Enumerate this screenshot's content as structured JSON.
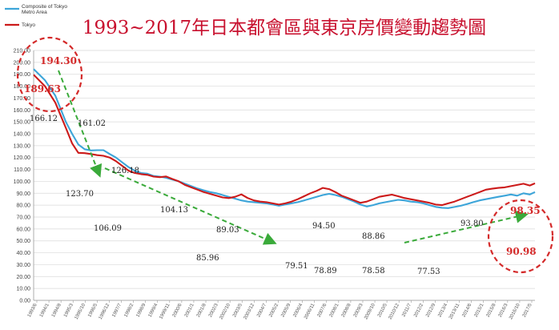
{
  "chart_data": {
    "type": "line",
    "title": "1993~2017年日本都會區與東京房價變動趨勢圖",
    "ylim": [
      0,
      210
    ],
    "y_ticks": [
      "0.00",
      "10.00",
      "20.00",
      "30.00",
      "40.00",
      "50.00",
      "60.00",
      "70.00",
      "80.00",
      "90.00",
      "100.00",
      "110.00",
      "120.00",
      "130.00",
      "140.00",
      "150.00",
      "160.00",
      "170.00",
      "180.00",
      "190.00",
      "200.00",
      "210.00"
    ],
    "x_ticks": [
      "1993/6",
      "1994/1",
      "1994/8",
      "1995/3",
      "1995/10",
      "1996/5",
      "1996/12",
      "1997/7",
      "1998/2",
      "1998/9",
      "1999/4",
      "1999/11",
      "2000/6",
      "2001/1",
      "2001/8",
      "2002/3",
      "2002/10",
      "2003/5",
      "2003/12",
      "2004/7",
      "2005/2",
      "2005/9",
      "2006/4",
      "2006/11",
      "2007/6",
      "2008/1",
      "2008/8",
      "2009/3",
      "2009/10",
      "2010/5",
      "2010/12",
      "2011/7",
      "2012/2",
      "2012/9",
      "2013/4",
      "2013/11",
      "2014/6",
      "2015/1",
      "2015/8",
      "2016/3",
      "2016/10",
      "2017/5"
    ],
    "grid": true,
    "legend_position": "top-left",
    "series": [
      {
        "name": "Composite of Tokyo Metro Area",
        "color": "#3da5d9",
        "x": [
          1993.46,
          1994.0,
          1994.5,
          1995.0,
          1995.3,
          1995.6,
          1995.9,
          1996.2,
          1996.5,
          1996.8,
          1997.1,
          1997.4,
          1997.7,
          1998.0,
          1998.3,
          1998.6,
          1998.9,
          1999.2,
          1999.5,
          1999.8,
          2000.1,
          2000.4,
          2000.7,
          2001.0,
          2001.3,
          2001.6,
          2001.9,
          2002.2,
          2002.5,
          2002.8,
          2003.1,
          2003.4,
          2003.7,
          2004.0,
          2004.3,
          2004.6,
          2004.9,
          2005.2,
          2005.5,
          2005.8,
          2006.1,
          2006.4,
          2006.7,
          2007.0,
          2007.3,
          2007.6,
          2007.9,
          2008.2,
          2008.5,
          2008.8,
          2009.1,
          2009.4,
          2009.7,
          2010.0,
          2010.3,
          2010.6,
          2010.9,
          2011.2,
          2011.5,
          2011.8,
          2012.1,
          2012.4,
          2012.7,
          2013.0,
          2013.3,
          2013.6,
          2013.9,
          2014.2,
          2014.5,
          2014.8,
          2015.1,
          2015.4,
          2015.7,
          2016.0,
          2016.3,
          2016.6,
          2016.9,
          2017.2,
          2017.45
        ],
        "values": [
          194.3,
          185,
          172,
          150,
          140,
          131,
          127,
          126,
          126.2,
          126.18,
          123,
          120,
          116,
          112,
          109,
          107,
          106.5,
          104.5,
          104,
          103,
          101.5,
          100,
          98,
          96,
          94,
          92.5,
          91,
          90,
          88.5,
          87,
          85.5,
          84,
          83,
          82.5,
          82,
          81.5,
          80.5,
          79.51,
          80.5,
          81.5,
          82.5,
          84,
          85.5,
          87,
          88.5,
          89.5,
          88.5,
          87,
          85,
          83,
          80.5,
          78.89,
          80,
          81.5,
          82.5,
          83.5,
          84.5,
          84,
          83,
          82.5,
          81.5,
          80,
          78.58,
          77.8,
          77.53,
          78.5,
          79.5,
          81,
          82.5,
          84,
          85,
          86,
          87,
          88,
          89,
          88,
          90,
          89,
          90.98
        ]
      },
      {
        "name": "Tokyo",
        "color": "#cc1a1a",
        "x": [
          1993.46,
          1994.0,
          1994.5,
          1995.0,
          1995.3,
          1995.6,
          1995.9,
          1996.2,
          1996.5,
          1996.8,
          1997.1,
          1997.4,
          1997.7,
          1998.0,
          1998.3,
          1998.6,
          1998.9,
          1999.2,
          1999.5,
          1999.8,
          2000.1,
          2000.4,
          2000.7,
          2001.0,
          2001.3,
          2001.6,
          2001.9,
          2002.2,
          2002.5,
          2002.8,
          2003.1,
          2003.4,
          2003.7,
          2004.0,
          2004.3,
          2004.6,
          2004.9,
          2005.2,
          2005.5,
          2005.8,
          2006.1,
          2006.4,
          2006.7,
          2007.0,
          2007.3,
          2007.6,
          2007.9,
          2008.2,
          2008.5,
          2008.8,
          2009.1,
          2009.4,
          2009.7,
          2010.0,
          2010.3,
          2010.6,
          2010.9,
          2011.2,
          2011.5,
          2011.8,
          2012.1,
          2012.4,
          2012.7,
          2013.0,
          2013.3,
          2013.6,
          2013.9,
          2014.2,
          2014.5,
          2014.8,
          2015.1,
          2015.4,
          2015.7,
          2016.0,
          2016.3,
          2016.6,
          2016.9,
          2017.2,
          2017.45
        ],
        "values": [
          189.63,
          180,
          166.12,
          145,
          132,
          124,
          123.7,
          123,
          122,
          121.5,
          120,
          117,
          113,
          109,
          107,
          106.09,
          105.5,
          104,
          103.5,
          104.13,
          102,
          100,
          97,
          95,
          93,
          91,
          89.5,
          88,
          86.5,
          85.96,
          87,
          89.03,
          86,
          84,
          83,
          82.5,
          81.5,
          80.5,
          81.5,
          83,
          85,
          87.5,
          90,
          92,
          94.5,
          93.5,
          91,
          88,
          86,
          84,
          82,
          83,
          85,
          87,
          88,
          88.86,
          87.5,
          86,
          85,
          84,
          83,
          82,
          80.5,
          80,
          81.5,
          83,
          85,
          87,
          89,
          91,
          93,
          93.8,
          94.5,
          95,
          96,
          97,
          98,
          96.5,
          98.35
        ]
      }
    ],
    "annotations": [
      {
        "text": "194.30",
        "style": "red"
      },
      {
        "text": "189.63",
        "style": "red"
      },
      {
        "text": "166.12",
        "style": "plain"
      },
      {
        "text": "161.02",
        "style": "plain"
      },
      {
        "text": "126.18",
        "style": "plain"
      },
      {
        "text": "123.70",
        "style": "plain"
      },
      {
        "text": "104.13",
        "style": "plain"
      },
      {
        "text": "106.09",
        "style": "plain"
      },
      {
        "text": "89.03",
        "style": "plain"
      },
      {
        "text": "85.96",
        "style": "plain"
      },
      {
        "text": "79.51",
        "style": "plain"
      },
      {
        "text": "94.50",
        "style": "plain"
      },
      {
        "text": "78.89",
        "style": "plain"
      },
      {
        "text": "88.86",
        "style": "plain"
      },
      {
        "text": "78.58",
        "style": "plain"
      },
      {
        "text": "77.53",
        "style": "plain"
      },
      {
        "text": "93.80",
        "style": "plain"
      },
      {
        "text": "98.35",
        "style": "red"
      },
      {
        "text": "90.98",
        "style": "red"
      }
    ],
    "highlight_color": "#d42a2a",
    "trend_arrow_color": "#3aaa3a"
  }
}
